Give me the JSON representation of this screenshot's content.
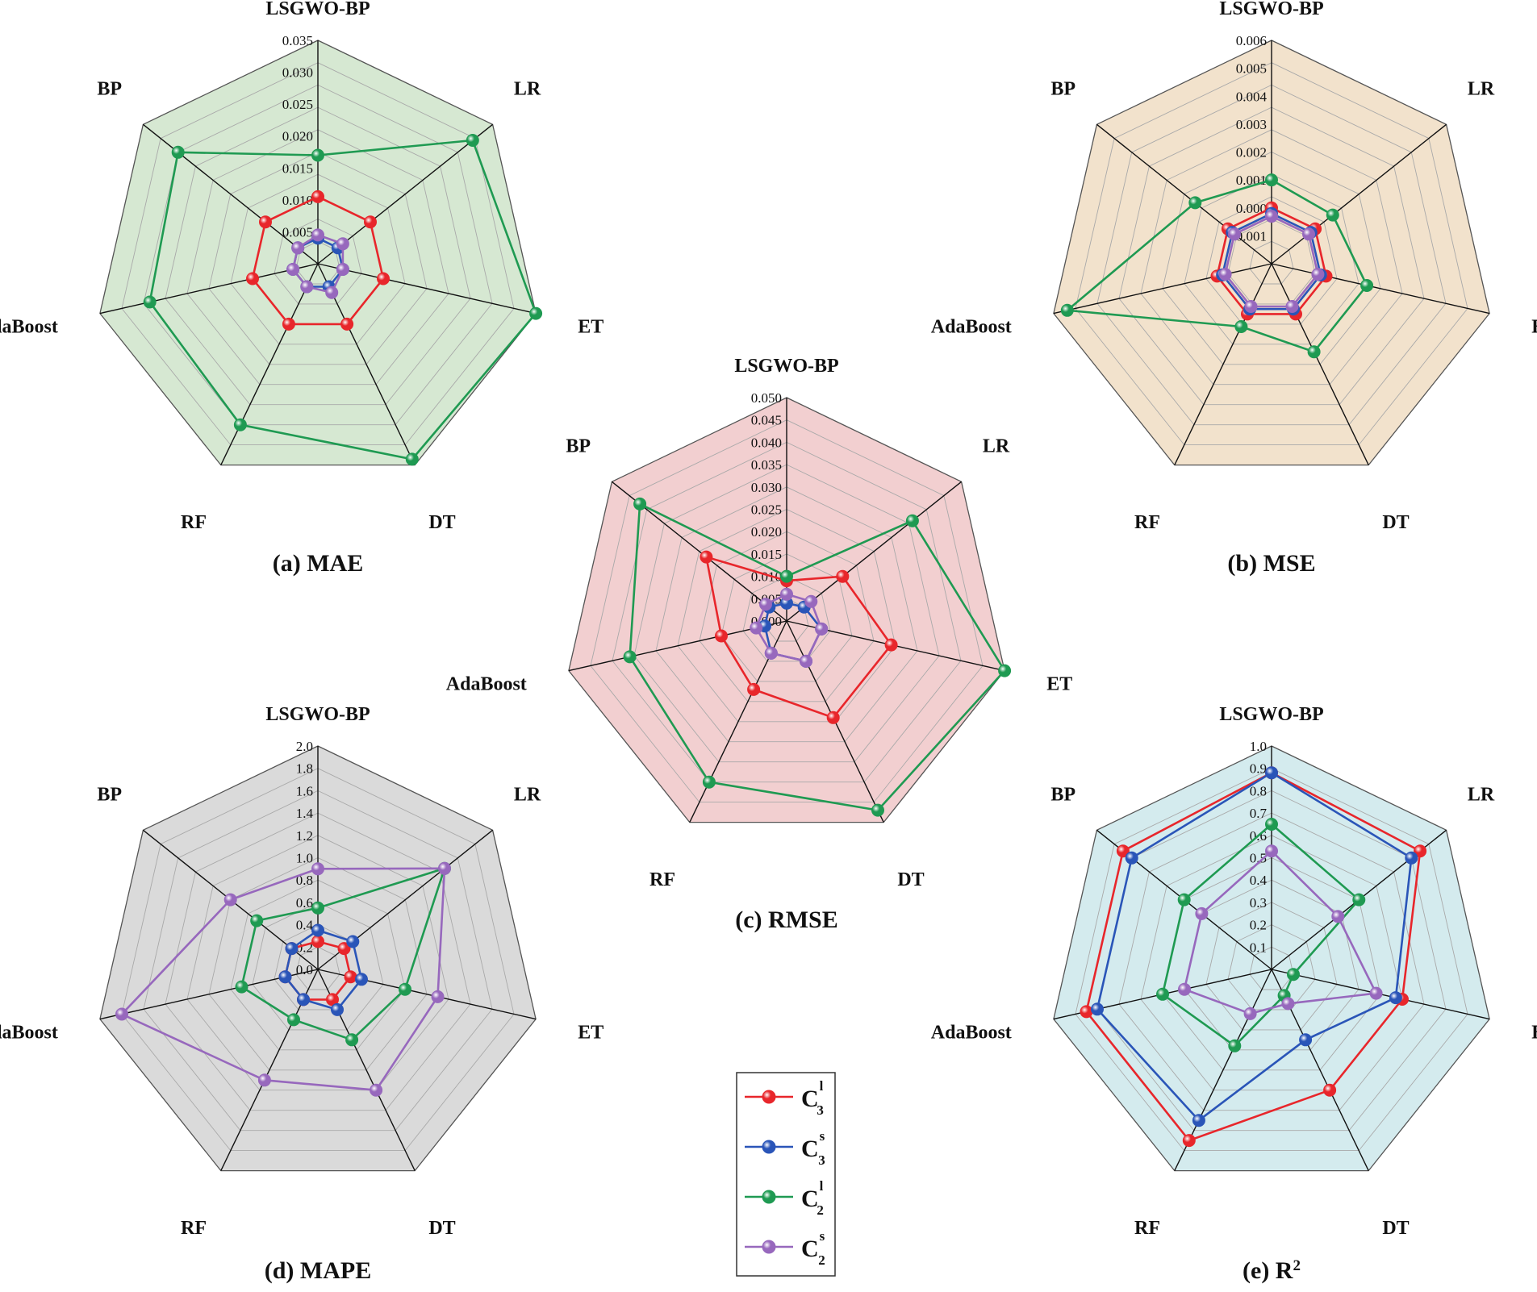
{
  "series": [
    {
      "key": "c3l",
      "base": "C",
      "sub": "3",
      "sup": "l",
      "color": "#e8262b"
    },
    {
      "key": "c3s",
      "base": "C",
      "sub": "3",
      "sup": "s",
      "color": "#2a55b8"
    },
    {
      "key": "c2l",
      "base": "C",
      "sub": "2",
      "sup": "l",
      "color": "#1f9a52"
    },
    {
      "key": "c2s",
      "base": "C",
      "sub": "2",
      "sup": "s",
      "color": "#9768bd"
    }
  ],
  "chart_data": [
    {
      "type": "radar",
      "id": "mae",
      "caption": "(a) MAE",
      "caption_sup": "",
      "fill": "#d6e8d2",
      "categories": [
        "LSGWO-BP",
        "LR",
        "ET",
        "DT",
        "RF",
        "daBoost",
        "BP"
      ],
      "range": [
        0,
        0.035
      ],
      "ticks": [
        "0.005",
        "0.010",
        "0.015",
        "0.020",
        "0.025",
        "0.030",
        "0.035"
      ],
      "series": [
        {
          "name": "C3l",
          "values": [
            0.0105,
            0.0105,
            0.0105,
            0.0105,
            0.0105,
            0.0105,
            0.0105
          ]
        },
        {
          "name": "C3s",
          "values": [
            0.004,
            0.004,
            0.004,
            0.004,
            0.004,
            0.004,
            0.004
          ]
        },
        {
          "name": "C2l",
          "values": [
            0.017,
            0.031,
            0.035,
            0.034,
            0.028,
            0.027,
            0.028
          ]
        },
        {
          "name": "C2s",
          "values": [
            0.0045,
            0.005,
            0.004,
            0.005,
            0.004,
            0.004,
            0.004
          ]
        }
      ]
    },
    {
      "type": "radar",
      "id": "mse",
      "caption": "(b) MSE",
      "caption_sup": "",
      "fill": "#f2e2cc",
      "categories": [
        "LSGWO-BP",
        "LR",
        "ET",
        "DT",
        "RF",
        "AdaBoost",
        "BP"
      ],
      "range": [
        -0.002,
        0.006
      ],
      "ticks": [
        "-0.001",
        "0.000",
        "0.001",
        "0.002",
        "0.003",
        "0.004",
        "0.005",
        "0.006"
      ],
      "series": [
        {
          "name": "C3l",
          "values": [
            0.0,
            0.0,
            0.0,
            0.0,
            0.0,
            0.0,
            0.0
          ]
        },
        {
          "name": "C3s",
          "values": [
            -0.0002,
            -0.0002,
            -0.0002,
            -0.0002,
            -0.0002,
            -0.0002,
            -0.0002
          ]
        },
        {
          "name": "C2l",
          "values": [
            0.001,
            0.0008,
            0.0015,
            0.0015,
            0.0005,
            0.0055,
            0.0015
          ]
        },
        {
          "name": "C2s",
          "values": [
            -0.0003,
            -0.0003,
            -0.0003,
            -0.0003,
            -0.0003,
            -0.0003,
            -0.0003
          ]
        }
      ]
    },
    {
      "type": "radar",
      "id": "rmse",
      "caption": "(c) RMSE",
      "caption_sup": "",
      "fill": "#f2cfd0",
      "categories": [
        "LSGWO-BP",
        "LR",
        "ET",
        "DT",
        "RF",
        "AdaBoost",
        "BP"
      ],
      "range": [
        0,
        0.05
      ],
      "ticks": [
        "0.000",
        "0.005",
        "0.010",
        "0.015",
        "0.020",
        "0.025",
        "0.030",
        "0.035",
        "0.040",
        "0.045",
        "0.050"
      ],
      "series": [
        {
          "name": "C3l",
          "values": [
            0.009,
            0.016,
            0.024,
            0.024,
            0.017,
            0.015,
            0.023
          ]
        },
        {
          "name": "C3s",
          "values": [
            0.004,
            0.005,
            0.008,
            0.01,
            0.008,
            0.005,
            0.005
          ]
        },
        {
          "name": "C2l",
          "values": [
            0.01,
            0.036,
            0.05,
            0.047,
            0.04,
            0.036,
            0.042
          ]
        },
        {
          "name": "C2s",
          "values": [
            0.006,
            0.007,
            0.008,
            0.01,
            0.008,
            0.007,
            0.006
          ]
        }
      ]
    },
    {
      "type": "radar",
      "id": "mape",
      "caption": "(d) MAPE",
      "caption_sup": "",
      "fill": "#dadada",
      "categories": [
        "LSGWO-BP",
        "LR",
        "ET",
        "DT",
        "RF",
        "daBoost",
        "BP"
      ],
      "range": [
        0,
        2.0
      ],
      "ticks": [
        "0.0",
        "0.2",
        "0.4",
        "0.6",
        "0.8",
        "1.0",
        "1.2",
        "1.4",
        "1.6",
        "1.8",
        "2.0"
      ],
      "series": [
        {
          "name": "C3l",
          "values": [
            0.25,
            0.3,
            0.3,
            0.3,
            0.3,
            0.3,
            0.3
          ]
        },
        {
          "name": "C3s",
          "values": [
            0.35,
            0.4,
            0.4,
            0.4,
            0.3,
            0.3,
            0.3
          ]
        },
        {
          "name": "C2l",
          "values": [
            0.55,
            1.45,
            0.8,
            0.7,
            0.5,
            0.7,
            0.7
          ]
        },
        {
          "name": "C2s",
          "values": [
            0.9,
            1.45,
            1.1,
            1.2,
            1.1,
            1.8,
            1.0
          ]
        }
      ]
    },
    {
      "type": "radar",
      "id": "r2",
      "caption": "(e) R",
      "caption_sup": "2",
      "fill": "#d4ebee",
      "categories": [
        "LSGWO-BP",
        "LR",
        "ET",
        "DT",
        "RF",
        "AdaBoost",
        "BP"
      ],
      "range": [
        0,
        1.0
      ],
      "ticks": [
        "0.1",
        "0.2",
        "0.3",
        "0.4",
        "0.5",
        "0.6",
        "0.7",
        "0.8",
        "0.9",
        "1.0"
      ],
      "series": [
        {
          "name": "C3l",
          "values": [
            0.88,
            0.85,
            0.6,
            0.6,
            0.85,
            0.85,
            0.85
          ]
        },
        {
          "name": "C3s",
          "values": [
            0.88,
            0.8,
            0.57,
            0.35,
            0.75,
            0.8,
            0.8
          ]
        },
        {
          "name": "C2l",
          "values": [
            0.65,
            0.5,
            0.1,
            0.13,
            0.38,
            0.5,
            0.5
          ]
        },
        {
          "name": "C2s",
          "values": [
            0.53,
            0.38,
            0.48,
            0.17,
            0.22,
            0.4,
            0.4
          ]
        }
      ]
    }
  ]
}
